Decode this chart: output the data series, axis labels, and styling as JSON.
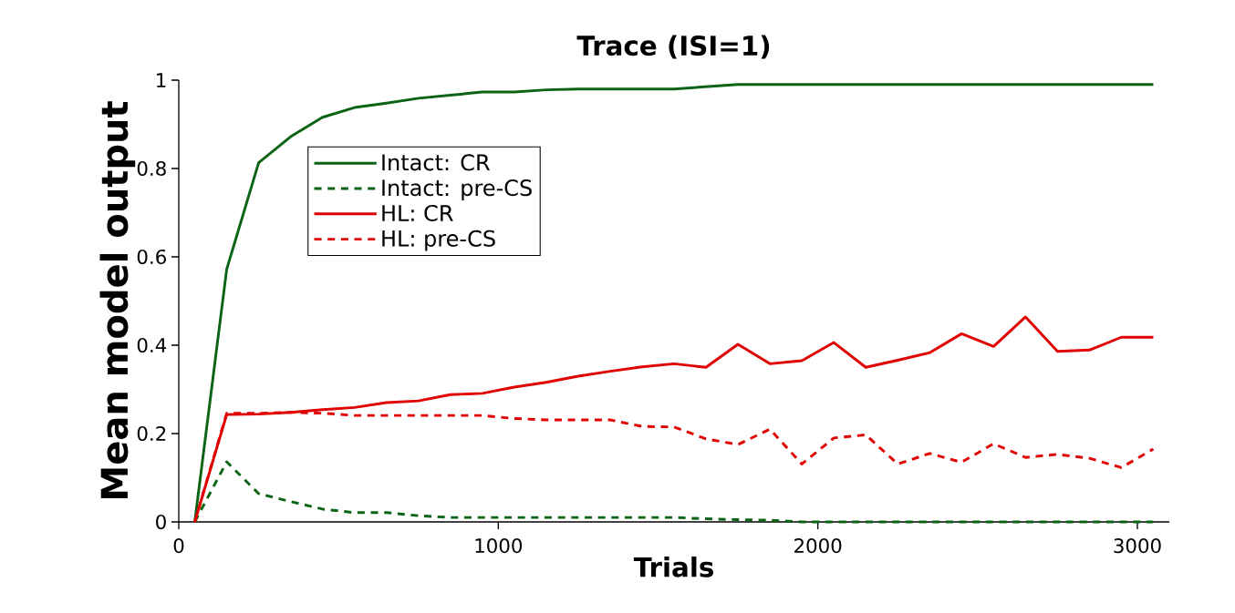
{
  "chart_data": {
    "type": "line",
    "title": "Trace (ISI=1)",
    "xlabel": "Trials",
    "ylabel": "Mean model output",
    "x": [
      50,
      150,
      250,
      350,
      450,
      550,
      650,
      750,
      850,
      950,
      1050,
      1150,
      1250,
      1350,
      1450,
      1550,
      1650,
      1750,
      1850,
      1950,
      2050,
      2150,
      2250,
      2350,
      2450,
      2550,
      2650,
      2750,
      2850,
      2950,
      3050
    ],
    "series": [
      {
        "name": "Intact: CR",
        "color": "#0a6414",
        "line_style": "solid",
        "values": [
          0,
          0.572,
          0.813,
          0.872,
          0.916,
          0.938,
          0.948,
          0.959,
          0.966,
          0.973,
          0.973,
          0.978,
          0.98,
          0.98,
          0.98,
          0.98,
          0.985,
          0.99,
          0.99,
          0.99,
          0.99,
          0.99,
          0.99,
          0.99,
          0.99,
          0.99,
          0.99,
          0.99,
          0.99,
          0.99,
          0.99
        ]
      },
      {
        "name": "Intact: pre-CS",
        "color": "#0a6414",
        "line_style": "dashed",
        "values": [
          0,
          0.136,
          0.064,
          0.046,
          0.029,
          0.021,
          0.021,
          0.014,
          0.01,
          0.01,
          0.01,
          0.01,
          0.01,
          0.01,
          0.01,
          0.01,
          0.007,
          0.005,
          0.004,
          0,
          0,
          0,
          0,
          0,
          0,
          0,
          0,
          0,
          0,
          0,
          0
        ]
      },
      {
        "name": "HL: CR",
        "color": "#e00000",
        "line_style": "solid",
        "values": [
          0,
          0.243,
          0.244,
          0.248,
          0.254,
          0.259,
          0.27,
          0.274,
          0.288,
          0.291,
          0.305,
          0.316,
          0.33,
          0.341,
          0.351,
          0.358,
          0.35,
          0.402,
          0.358,
          0.365,
          0.406,
          0.35,
          0.366,
          0.383,
          0.426,
          0.397,
          0.464,
          0.386,
          0.389,
          0.418,
          0.418
        ]
      },
      {
        "name": "HL: pre-CS",
        "color": "#e00000",
        "line_style": "dashed",
        "values": [
          0,
          0.246,
          0.246,
          0.248,
          0.246,
          0.241,
          0.241,
          0.241,
          0.241,
          0.241,
          0.234,
          0.231,
          0.231,
          0.231,
          0.216,
          0.215,
          0.188,
          0.175,
          0.21,
          0.131,
          0.19,
          0.197,
          0.131,
          0.155,
          0.135,
          0.177,
          0.146,
          0.153,
          0.144,
          0.123,
          0.165
        ]
      }
    ],
    "xlim": [
      0,
      3100
    ],
    "ylim": [
      0,
      1
    ],
    "xticks": [
      0,
      1000,
      2000,
      3000
    ],
    "yticks": [
      0,
      0.2,
      0.4,
      0.6,
      0.8,
      1
    ],
    "legend": "top left",
    "grid": false,
    "marker": "none"
  }
}
